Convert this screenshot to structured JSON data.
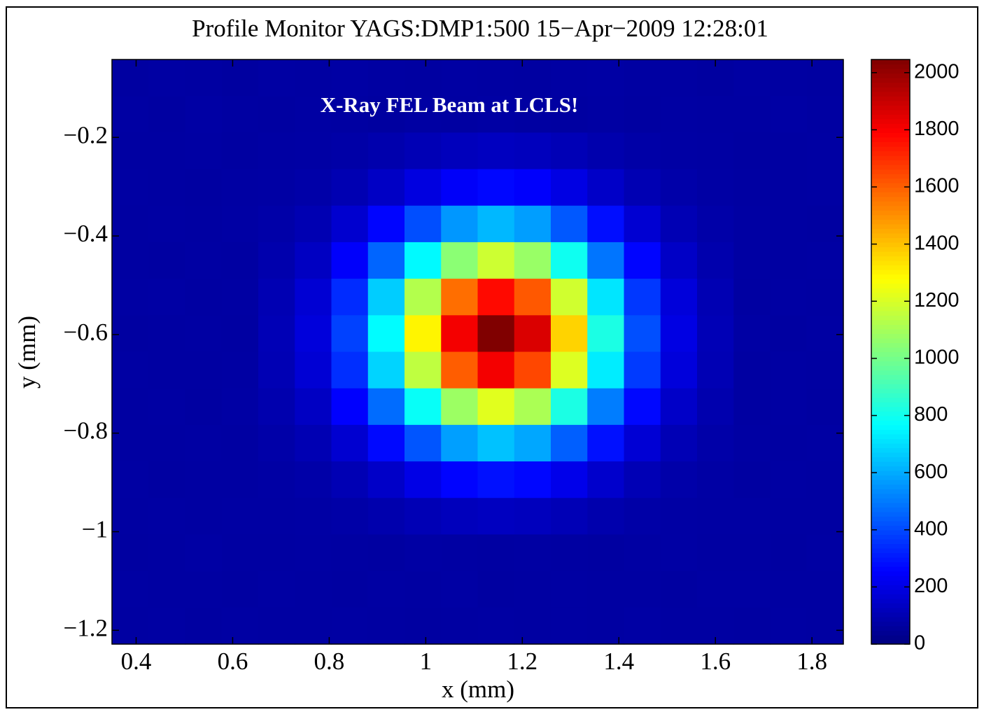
{
  "chart_data": {
    "type": "heatmap",
    "title": "Profile Monitor YAGS:DMP1:500 15−Apr−2009 12:28:01",
    "annotation": "X-Ray FEL Beam at LCLS!",
    "x_label": "x  (mm)",
    "y_label": "y  (mm)",
    "xlim": [
      0.35,
      1.865
    ],
    "ylim": [
      -1.228,
      -0.042
    ],
    "xticks": [
      0.4,
      0.6,
      0.8,
      1,
      1.2,
      1.4,
      1.6,
      1.8
    ],
    "yticks": [
      {
        "value": -1.2,
        "label": "−1.2"
      },
      {
        "value": -1,
        "label": "−1"
      },
      {
        "value": -0.8,
        "label": "−0.8"
      },
      {
        "value": -0.6,
        "label": "−0.6"
      },
      {
        "value": -0.4,
        "label": "−0.4"
      },
      {
        "value": -0.2,
        "label": "−0.2"
      }
    ],
    "colormap": "jet",
    "clim": [
      0,
      2046
    ],
    "cticks": [
      0,
      200,
      400,
      600,
      800,
      1000,
      1200,
      1400,
      1600,
      1800,
      2000
    ],
    "z": [
      [
        68,
        72,
        70,
        66,
        71,
        69,
        73,
        70,
        67,
        72,
        70,
        68,
        71,
        74,
        69,
        70,
        66,
        72,
        70,
        68
      ],
      [
        71,
        67,
        73,
        70,
        68,
        72,
        70,
        66,
        71,
        69,
        73,
        70,
        68,
        72,
        67,
        71,
        70,
        69,
        73,
        70
      ],
      [
        70,
        69,
        72,
        68,
        71,
        73,
        79,
        91,
        107,
        122,
        129,
        123,
        109,
        92,
        80,
        74,
        71,
        68,
        70,
        72
      ],
      [
        72,
        70,
        67,
        71,
        74,
        81,
        102,
        139,
        193,
        244,
        268,
        249,
        200,
        145,
        104,
        83,
        74,
        70,
        69,
        71
      ],
      [
        69,
        71,
        70,
        73,
        81,
        102,
        159,
        264,
        413,
        558,
        624,
        572,
        433,
        281,
        166,
        106,
        81,
        72,
        70,
        68
      ],
      [
        70,
        68,
        72,
        70,
        92,
        133,
        247,
        458,
        758,
        1046,
        1179,
        1075,
        796,
        491,
        263,
        142,
        92,
        71,
        69,
        72
      ],
      [
        71,
        73,
        69,
        72,
        104,
        167,
        342,
        666,
        1126,
        1569,
        1773,
        1613,
        1185,
        717,
        366,
        181,
        104,
        70,
        72,
        69
      ],
      [
        68,
        70,
        71,
        69,
        110,
        183,
        387,
        763,
        1298,
        1812,
        2050,
        1864,
        1367,
        822,
        415,
        199,
        110,
        73,
        68,
        71
      ],
      [
        72,
        69,
        70,
        71,
        105,
        169,
        349,
        680,
        1150,
        1603,
        1812,
        1648,
        1211,
        732,
        373,
        183,
        105,
        69,
        71,
        70
      ],
      [
        70,
        72,
        68,
        73,
        93,
        135,
        254,
        472,
        782,
        1080,
        1218,
        1110,
        822,
        506,
        270,
        145,
        93,
        70,
        72,
        68
      ],
      [
        69,
        70,
        72,
        70,
        81,
        103,
        162,
        271,
        426,
        575,
        644,
        590,
        446,
        288,
        170,
        107,
        81,
        72,
        69,
        71
      ],
      [
        71,
        68,
        70,
        69,
        74,
        82,
        105,
        146,
        205,
        262,
        288,
        268,
        213,
        153,
        108,
        84,
        74,
        68,
        71,
        70
      ],
      [
        70,
        72,
        69,
        71,
        71,
        73,
        79,
        91,
        107,
        122,
        129,
        123,
        109,
        92,
        80,
        74,
        71,
        72,
        70,
        69
      ],
      [
        68,
        70,
        73,
        70,
        69,
        72,
        70,
        68,
        73,
        71,
        69,
        72,
        70,
        67,
        71,
        73,
        69,
        70,
        68,
        72
      ],
      [
        72,
        69,
        70,
        68,
        72,
        70,
        67,
        71,
        70,
        73,
        68,
        70,
        72,
        69,
        70,
        68,
        72,
        71,
        70,
        69
      ],
      [
        70,
        71,
        68,
        72,
        70,
        69,
        72,
        70,
        68,
        70,
        72,
        69,
        71,
        70,
        73,
        70,
        69,
        68,
        72,
        70
      ]
    ]
  }
}
